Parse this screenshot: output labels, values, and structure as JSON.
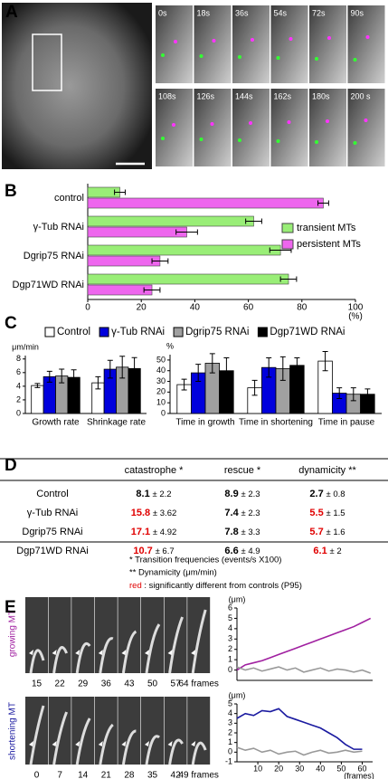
{
  "panel_labels": [
    "A",
    "B",
    "C",
    "D",
    "E"
  ],
  "images": {
    "a_times": [
      "0s",
      "18s",
      "36s",
      "54s",
      "72s",
      "90s",
      "108s",
      "126s",
      "144s",
      "162s",
      "180s",
      "200 s"
    ],
    "growing_label": "growing MT",
    "growing_frames": [
      "15",
      "22",
      "29",
      "36",
      "43",
      "50",
      "57",
      "64 frames"
    ],
    "shortening_label": "shortening MT",
    "shortening_frames": [
      "0",
      "7",
      "14",
      "21",
      "28",
      "35",
      "42",
      "49 frames"
    ]
  },
  "chart_data": [
    {
      "type": "bar",
      "orientation": "horizontal",
      "categories": [
        "control",
        "γ-Tub RNAi",
        "Dgrip75 RNAi",
        "Dgp71WD RNAi"
      ],
      "series": [
        {
          "name": "transient MTs",
          "color": "#99ee77",
          "values": [
            12,
            62,
            72,
            75
          ],
          "errors": [
            2,
            3,
            4,
            3
          ]
        },
        {
          "name": "persistent MTs",
          "color": "#ee66ee",
          "values": [
            88,
            37,
            27,
            24
          ],
          "errors": [
            2,
            4,
            3,
            3
          ]
        }
      ],
      "xlim": [
        0,
        100
      ],
      "xticks": [
        0,
        20,
        40,
        60,
        80,
        100
      ],
      "xlabel": "(%)",
      "legend": "right"
    },
    {
      "type": "bar",
      "ylabel": "μm/min",
      "categories": [
        "Growth rate",
        "Shrinkage rate"
      ],
      "series": [
        {
          "name": "Control",
          "color": "#ffffff",
          "values": [
            4.1,
            4.5
          ],
          "errors": [
            0.3,
            0.9
          ]
        },
        {
          "name": "γ-Tub RNAi",
          "color": "#0000dd",
          "values": [
            5.4,
            6.5
          ],
          "errors": [
            0.8,
            1.3
          ]
        },
        {
          "name": "Dgrip75 RNAi",
          "color": "#a0a0a0",
          "values": [
            5.5,
            6.8
          ],
          "errors": [
            1.0,
            1.6
          ]
        },
        {
          "name": "Dgp71WD RNAi",
          "color": "#000000",
          "values": [
            5.3,
            6.6
          ],
          "errors": [
            1.1,
            1.6
          ]
        }
      ],
      "ylim": [
        0,
        8.5
      ],
      "yticks": [
        0,
        2,
        4,
        6,
        8
      ],
      "legend": "top"
    },
    {
      "type": "bar",
      "ylabel": "%",
      "categories": [
        "Time in growth",
        "Time in shortening",
        "Time in pause"
      ],
      "series": [
        {
          "color": "#ffffff",
          "values": [
            27,
            24,
            49
          ],
          "errors": [
            5,
            7,
            9
          ]
        },
        {
          "color": "#0000dd",
          "values": [
            38,
            43,
            19
          ],
          "errors": [
            8,
            9,
            5
          ]
        },
        {
          "color": "#a0a0a0",
          "values": [
            47,
            42,
            18
          ],
          "errors": [
            9,
            11,
            6
          ]
        },
        {
          "color": "#000000",
          "values": [
            40,
            45,
            18
          ],
          "errors": [
            12,
            7,
            5
          ]
        }
      ],
      "ylim": [
        0,
        55
      ],
      "yticks": [
        0,
        10,
        20,
        30,
        40,
        50
      ]
    },
    {
      "type": "line",
      "ylabel": "(μm)",
      "x": [
        0,
        4,
        8,
        12,
        16,
        20,
        24,
        28,
        32,
        36,
        40,
        44,
        48,
        52,
        56,
        60,
        64
      ],
      "series": [
        {
          "color": "#a020a0",
          "values": [
            0,
            0.5,
            0.7,
            0.9,
            1.2,
            1.5,
            1.8,
            2.1,
            2.4,
            2.7,
            3.0,
            3.3,
            3.6,
            3.9,
            4.2,
            4.6,
            5.0
          ]
        },
        {
          "color": "#999999",
          "values": [
            0.3,
            0,
            0.2,
            -0.1,
            0.1,
            0.3,
            0,
            0.2,
            -0.2,
            0,
            0.2,
            -0.1,
            0.1,
            0,
            -0.2,
            0,
            -0.3
          ]
        }
      ],
      "xlim": [
        0,
        65
      ],
      "ylim": [
        -1,
        6
      ],
      "yticks": [
        0,
        1,
        2,
        3,
        4,
        5,
        6
      ]
    },
    {
      "type": "line",
      "ylabel": "(μm)",
      "xlabel": "(frames)",
      "x": [
        0,
        4,
        8,
        12,
        16,
        20,
        24,
        28,
        32,
        36,
        40,
        44,
        48,
        52,
        56,
        60
      ],
      "series": [
        {
          "color": "#1a1aa0",
          "values": [
            3.5,
            4.0,
            3.8,
            4.3,
            4.2,
            4.5,
            3.7,
            3.4,
            3.1,
            2.8,
            2.5,
            2.0,
            1.5,
            0.8,
            0.3,
            0.3
          ]
        },
        {
          "color": "#999999",
          "values": [
            0.5,
            0.2,
            0.4,
            0,
            0.2,
            -0.2,
            0,
            0.1,
            -0.3,
            0,
            0.2,
            -0.1,
            0,
            0.2,
            0,
            0.1
          ]
        }
      ],
      "xlim": [
        0,
        65
      ],
      "ylim": [
        -1,
        5
      ],
      "yticks": [
        -1,
        0,
        1,
        2,
        3,
        4,
        5
      ],
      "xticks": [
        10,
        20,
        30,
        40,
        50,
        60
      ]
    }
  ],
  "table": {
    "header": [
      "catastrophe *",
      "rescue *",
      "dynamicity  **"
    ],
    "rows": [
      {
        "label": "Control",
        "cells": [
          {
            "mean": "8.1",
            "err": "± 2.2",
            "significant": false
          },
          {
            "mean": "8.9",
            "err": "± 2.3",
            "significant": false
          },
          {
            "mean": "2.7",
            "err": "± 0.8",
            "significant": false
          }
        ]
      },
      {
        "label": "γ-Tub RNAi",
        "cells": [
          {
            "mean": "15.8",
            "err": "± 3.62",
            "significant": true
          },
          {
            "mean": "7.4",
            "err": "± 2.3",
            "significant": false
          },
          {
            "mean": "5.5",
            "err": "± 1.5",
            "significant": true
          }
        ]
      },
      {
        "label": "Dgrip75 RNAi",
        "cells": [
          {
            "mean": "17.1",
            "err": "± 4.92",
            "significant": true
          },
          {
            "mean": "7.8",
            "err": "± 3.3",
            "significant": false
          },
          {
            "mean": "5.7",
            "err": "± 1.6",
            "significant": true
          }
        ]
      },
      {
        "label": "Dgp71WD RNAi",
        "cells": [
          {
            "mean": "10.7",
            "err": "± 6.7",
            "significant": true
          },
          {
            "mean": "6.6",
            "err": "± 4.9",
            "significant": false
          },
          {
            "mean": "6.1",
            "err": "± 2",
            "significant": true
          }
        ]
      }
    ]
  },
  "footnotes": {
    "lines": [
      "* Transition frequencies (events/s X100)",
      "** Dynamicity (μm/min)"
    ],
    "red_key": "red",
    "red_text": "  : significantly different from controls (P95)"
  }
}
